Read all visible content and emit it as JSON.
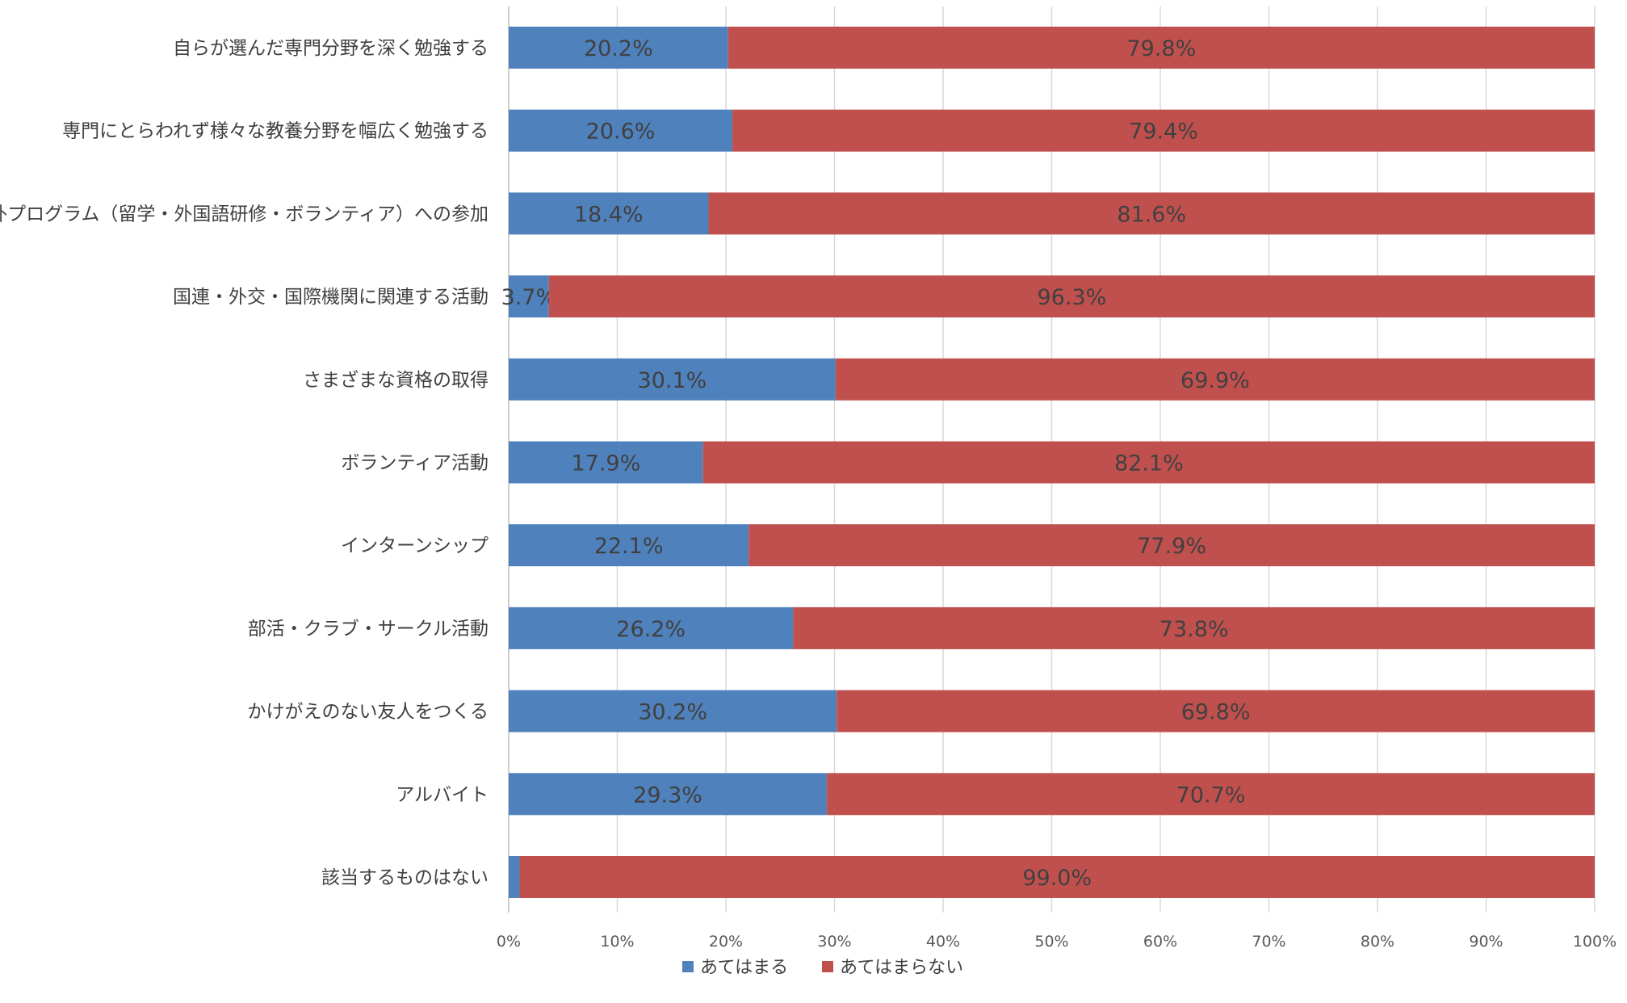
{
  "chart_data": {
    "type": "bar",
    "orientation": "horizontal",
    "stacked": "percent",
    "categories": [
      "自らが選んだ専門分野を深く勉強する",
      "専門にとらわれず様々な教養分野を幅広く勉強する",
      "海外プログラム（留学・外国語研修・ボランティア）への参加",
      "国連・外交・国際機関に関連する活動",
      "さまざまな資格の取得",
      "ボランティア活動",
      "インターンシップ",
      "部活・クラブ・サークル活動",
      "かけがえのない友人をつくる",
      "アルバイト",
      "該当するものはない"
    ],
    "series": [
      {
        "name": "あてはまる",
        "color": "#4F81BD",
        "values": [
          20.2,
          20.6,
          18.4,
          3.7,
          30.1,
          17.9,
          22.1,
          26.2,
          30.2,
          29.3,
          1.0
        ],
        "labels": [
          "20.2%",
          "20.6%",
          "18.4%",
          "3.7%",
          "30.1%",
          "17.9%",
          "22.1%",
          "26.2%",
          "30.2%",
          "29.3%",
          ""
        ]
      },
      {
        "name": "あてはまらない",
        "color": "#C0504D",
        "values": [
          79.8,
          79.4,
          81.6,
          96.3,
          69.9,
          82.1,
          77.9,
          73.8,
          69.8,
          70.7,
          99.0
        ],
        "labels": [
          "79.8%",
          "79.4%",
          "81.6%",
          "96.3%",
          "69.9%",
          "82.1%",
          "77.9%",
          "73.8%",
          "69.8%",
          "70.7%",
          "99.0%"
        ]
      }
    ],
    "xlim": [
      0,
      100
    ],
    "xticks": [
      "0%",
      "10%",
      "20%",
      "30%",
      "40%",
      "50%",
      "60%",
      "70%",
      "80%",
      "90%",
      "100%"
    ],
    "grid": true,
    "legend": "bottom",
    "title": "",
    "xlabel": "",
    "ylabel": ""
  }
}
